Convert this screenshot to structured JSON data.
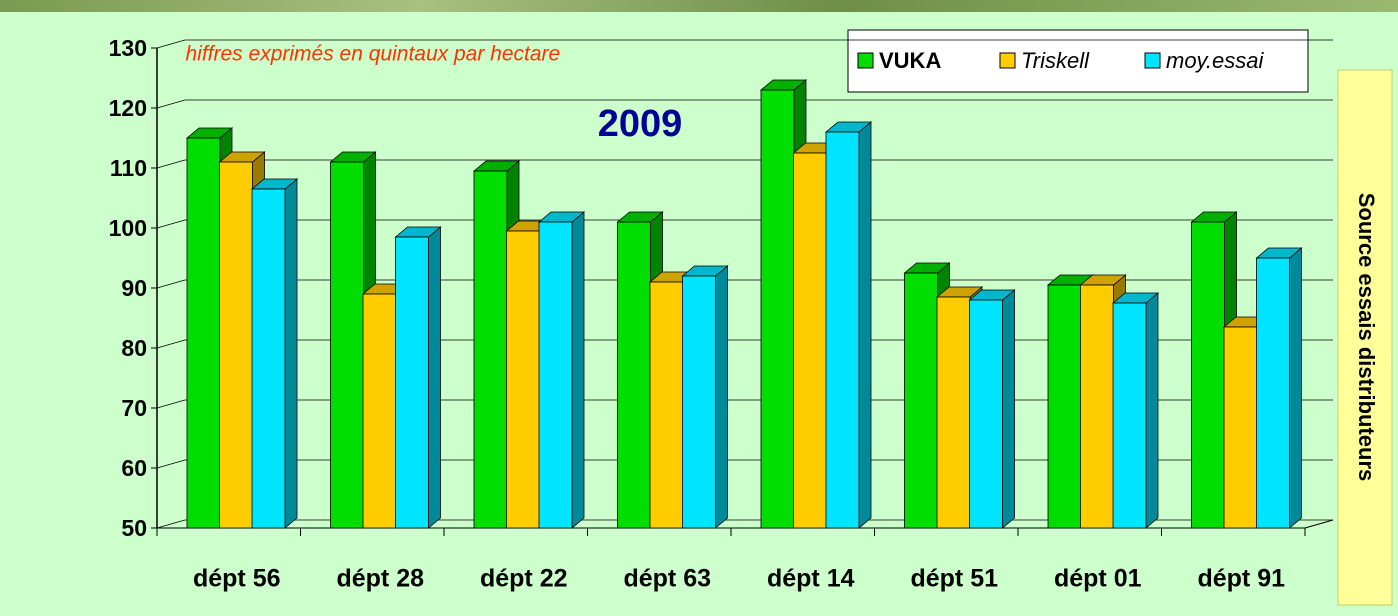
{
  "chart_data": {
    "type": "bar3d",
    "annotation": "chiffres exprimés en quintaux par hectare",
    "year_label": "2009",
    "side_label": "Source essais distributeurs",
    "categories": [
      "dépt 56",
      "dépt 28",
      "dépt 22",
      "dépt 63",
      "dépt 14",
      "dépt 51",
      "dépt 01",
      "dépt 91"
    ],
    "series": [
      {
        "name": "VUKA",
        "color": "#00dd00",
        "values": [
          115,
          111,
          109.5,
          101,
          123,
          92.5,
          90.5,
          101
        ]
      },
      {
        "name": "Triskell",
        "color": "#ffcc00",
        "values": [
          111,
          89,
          99.5,
          91,
          112.5,
          88.5,
          90.5,
          83.5
        ]
      },
      {
        "name": "moy.essai",
        "color": "#00e5ff",
        "values": [
          106.5,
          98.5,
          101,
          92,
          116,
          88,
          87.5,
          95
        ]
      }
    ],
    "ylim": [
      50,
      130
    ],
    "yticks": [
      50,
      60,
      70,
      80,
      90,
      100,
      110,
      120,
      130
    ],
    "grid": true
  }
}
